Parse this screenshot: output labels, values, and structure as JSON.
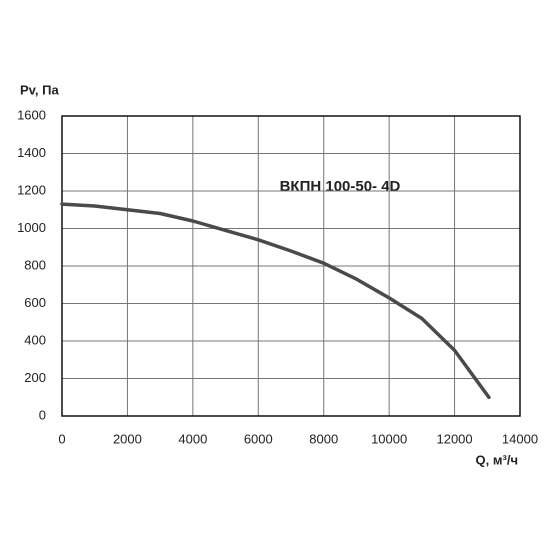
{
  "chart_data": {
    "type": "line",
    "title": "ВКПН 100-50- 4D",
    "x_label": "Q, м³/ч",
    "y_label": "Pv, Па",
    "x": [
      0,
      1000,
      2000,
      3000,
      4000,
      5000,
      6000,
      7000,
      8000,
      9000,
      10000,
      11000,
      12000,
      13050
    ],
    "series": [
      {
        "name": "ВКПН 100-50- 4D",
        "color": "#4a4a4a",
        "values": [
          1130,
          1120,
          1100,
          1080,
          1040,
          990,
          940,
          880,
          815,
          730,
          630,
          520,
          350,
          100
        ]
      }
    ],
    "xlim": [
      0,
      14000
    ],
    "xticks": [
      0,
      2000,
      4000,
      6000,
      8000,
      10000,
      12000,
      14000
    ],
    "ylim": [
      0,
      1600
    ],
    "yticks": [
      0,
      200,
      400,
      600,
      800,
      1000,
      1200,
      1400,
      1600
    ],
    "grid": true
  }
}
